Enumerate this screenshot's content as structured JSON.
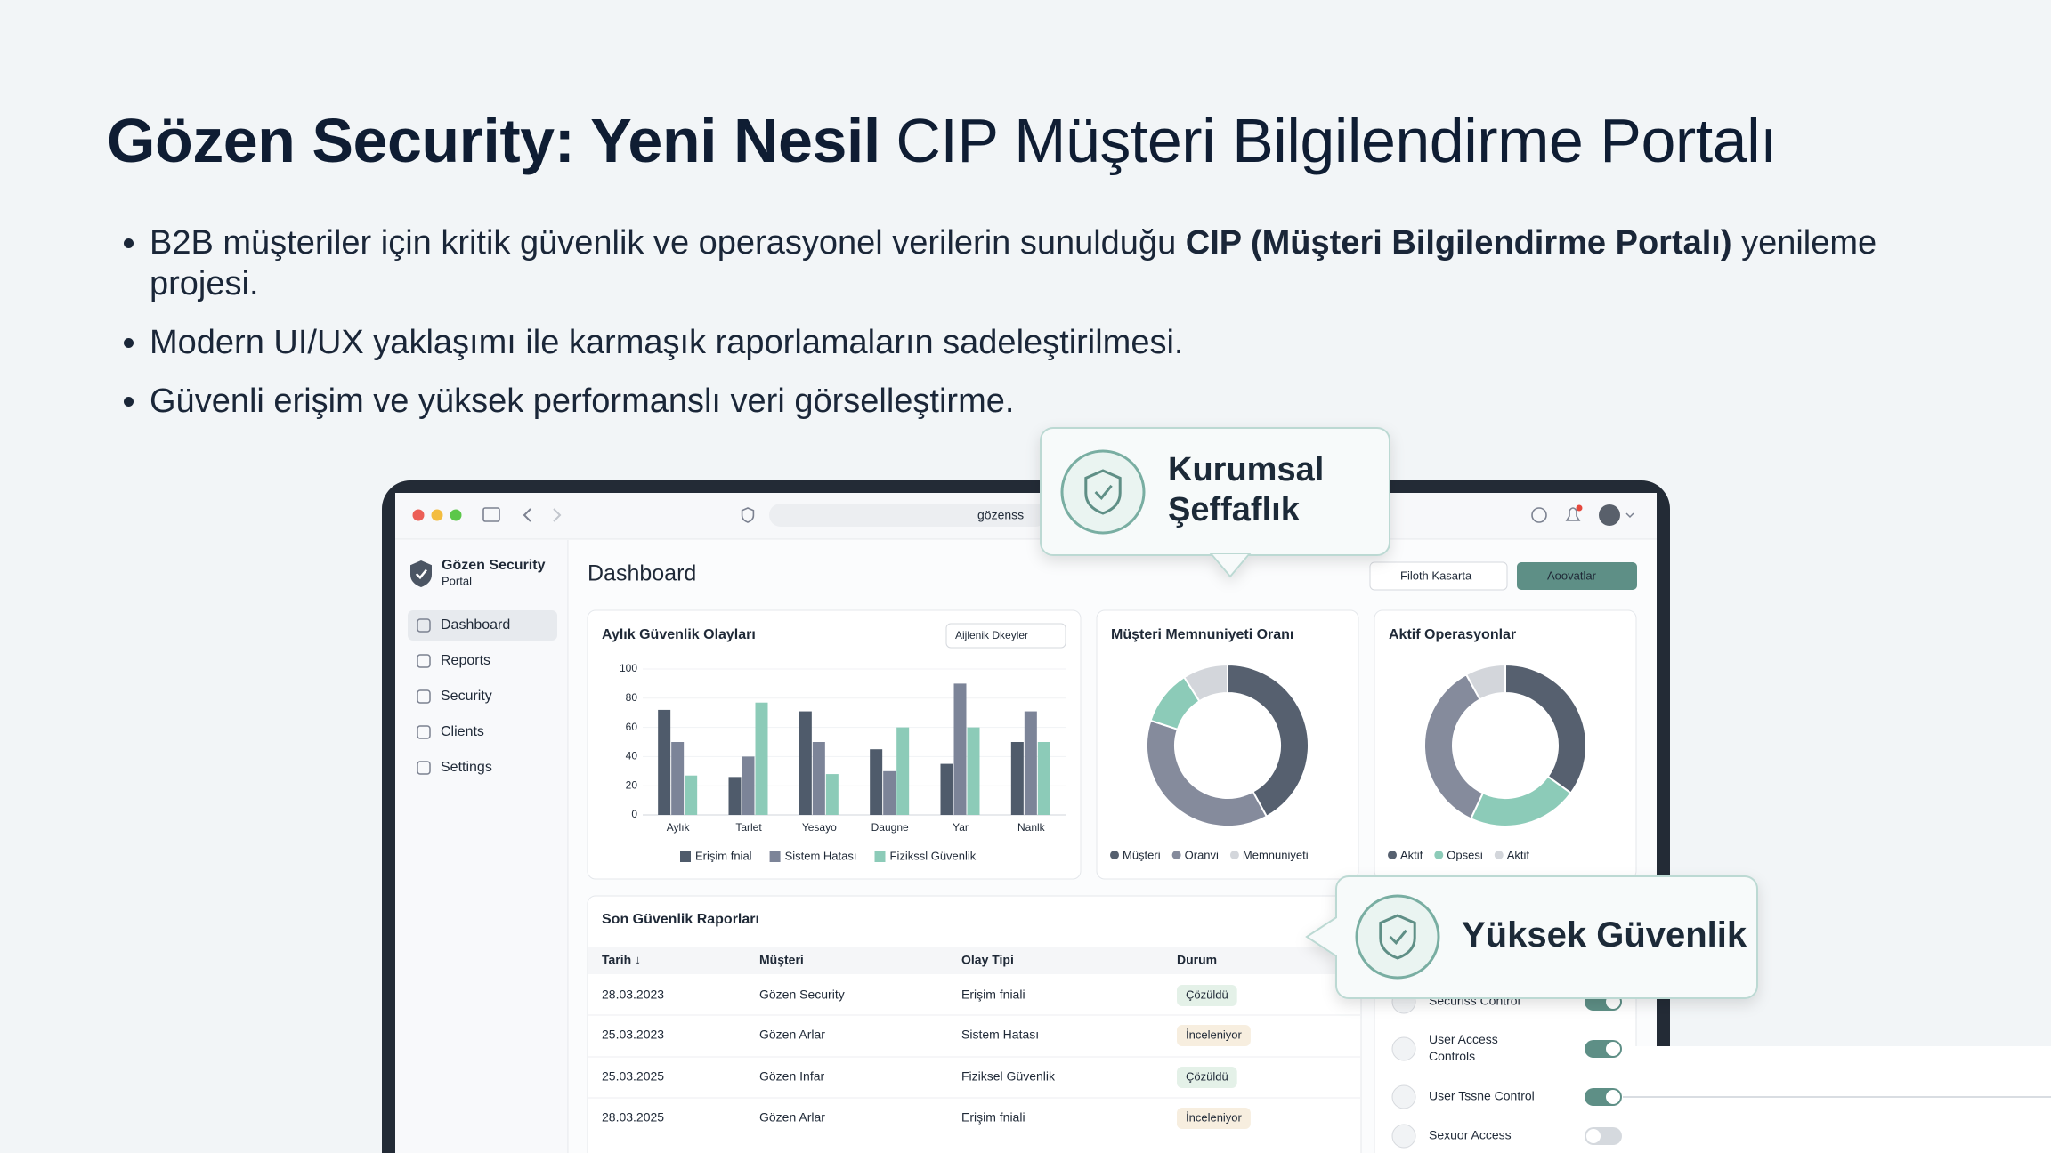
{
  "slide": {
    "title_bold": "Gözen Security: Yeni Nesil",
    "title_rest": "CIP Müşteri Bilgilendirme Portalı",
    "bullet_1": {
      "before": "B2B müşteriler için kritik güvenlik ve operasyonel verilerin sunulduğu ",
      "bold": "CIP (Müşteri Bilgilendirme Portalı)",
      "after": " yenileme projesi."
    },
    "bullet_2": "Modern UI/UX yaklaşımı ile karmaşık raporlamaların sadeleştirilmesi.",
    "bullet_3": "Güvenli erişim ve yüksek performanslı veri görselleştirme."
  },
  "callouts": [
    {
      "lines": [
        "Kurumsal",
        "Şeffaflık"
      ]
    },
    {
      "lines": [
        "Yüksek Güvenlik"
      ]
    }
  ],
  "browser": {
    "address": "gözenss"
  },
  "sidebar": {
    "brand": "Gözen Security",
    "sub": "Portal",
    "nav": [
      "Dashboard",
      "Reports",
      "Security",
      "Clients",
      "Settings"
    ]
  },
  "dashboard": {
    "title": "Dashboard",
    "buttons": [
      "Filoth Kasarta",
      "Aoovatlar"
    ]
  },
  "bar_chart": {
    "type": "bar",
    "title": "Aylık Güvenlik Olayları",
    "filter": "Aijlenik Dkeyler",
    "categories": [
      "Aylık",
      "Tarlet",
      "Yesayo",
      "Daugne",
      "Yar",
      "Nanlk"
    ],
    "series": [
      {
        "name": "Erişim fnial",
        "color": "#4f5b6b",
        "values": [
          72,
          26,
          71,
          45,
          35,
          50
        ]
      },
      {
        "name": "Sistem Hatası",
        "color": "#7c8498",
        "values": [
          50,
          40,
          50,
          30,
          90,
          71
        ]
      },
      {
        "name": "Fizikssl Güvenlik",
        "color": "#8ccbb8",
        "values": [
          27,
          77,
          28,
          60,
          60,
          50
        ]
      }
    ],
    "ylim": [
      0,
      100
    ],
    "yticks": [
      0,
      20,
      40,
      60,
      80,
      100
    ]
  },
  "donuts": [
    {
      "type": "pie",
      "title": "Müşteri Memnuniyeti Oranı",
      "categories": [
        "Müşteri",
        "Oranvi",
        null,
        "Memnuniyeti"
      ],
      "values": [
        42,
        38,
        11,
        9
      ],
      "colors": [
        "#56606f",
        "#858b9c",
        "#8ccbb8",
        "#d3d6db"
      ]
    },
    {
      "type": "pie",
      "title": "Aktif Operasyonlar",
      "categories": [
        "Aktif",
        "Opsesi",
        null,
        "Aktif"
      ],
      "values": [
        35,
        22,
        35,
        8
      ],
      "colors": [
        "#56606f",
        "#8ccbb8",
        "#858b9c",
        "#d3d6db"
      ]
    }
  ],
  "table": {
    "title": "Son Güvenlik Raporları",
    "columns": [
      "Tarih ↓",
      "Müşteri",
      "Olay Tipi",
      "Durum"
    ],
    "rows": [
      [
        "28.03.2023",
        "Gözen Security",
        "Erişim fniali",
        "Çözüldü"
      ],
      [
        "25.03.2023",
        "Gözen Arlar",
        "Sistem Hatası",
        "İnceleniyor"
      ],
      [
        "25.03.2025",
        "Gözen Infar",
        "Fiziksel Güvenlik",
        "Çözüldü"
      ],
      [
        "28.03.2025",
        "Gözen Arlar",
        "Erişim fniali",
        "İnceleniyor"
      ]
    ],
    "status_colors": [
      "#3f9a5c",
      "#c98a1a",
      "#3f9a5c",
      "#c98a1a"
    ]
  },
  "controls": [
    {
      "lines": [
        "Securiss Control"
      ],
      "on": true
    },
    {
      "lines": [
        "User Access",
        "Controls"
      ],
      "on": true
    },
    {
      "lines": [
        "User Tssne Control"
      ],
      "on": true
    },
    {
      "lines": [
        "Sexuor Access"
      ],
      "on": false
    }
  ]
}
